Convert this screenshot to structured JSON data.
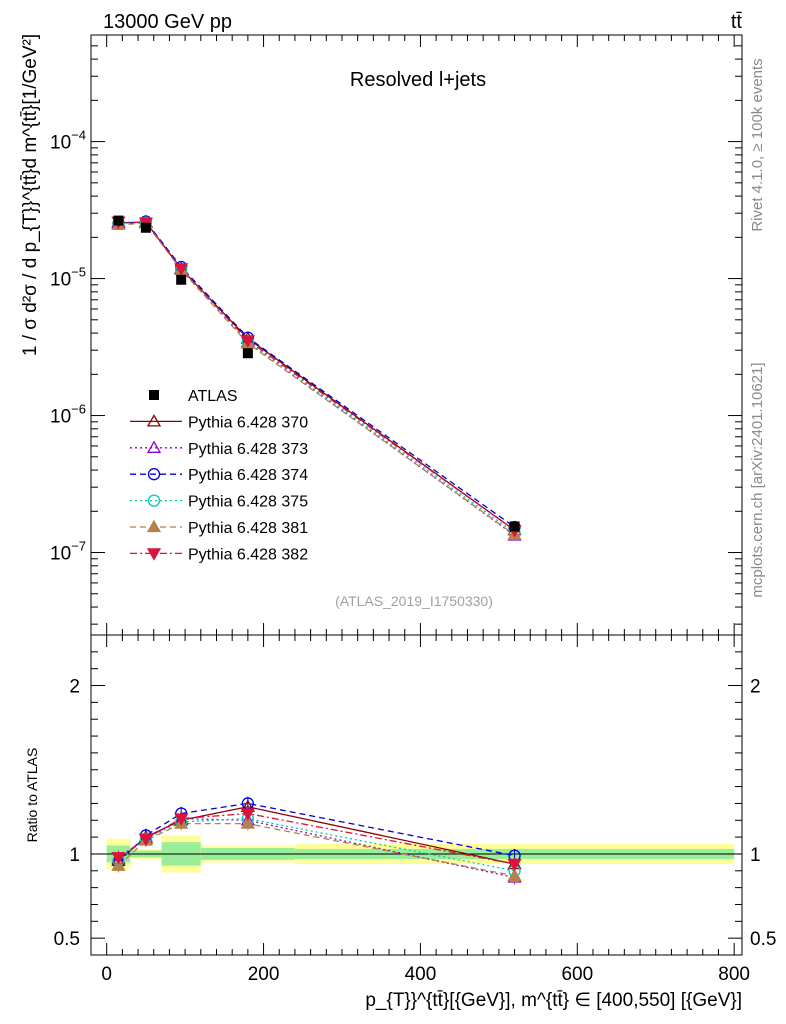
{
  "header": {
    "energy_label": "13000 GeV pp",
    "process_label": "tt̄"
  },
  "side_labels": {
    "rivet": "Rivet 4.1.0, ≥ 100k events",
    "source": "mcplots.cern.ch [arXiv:2401.10621]"
  },
  "chart_data": {
    "type": "line",
    "title": "Resolved l+jets",
    "analysis_id": "(ATLAS_2019_I1750330)",
    "xlabel": "p_{T}}^{tt̄}[{GeV}], m^{tt̄} ∈ [400,550] [{GeV}]",
    "ylabel_main": "1 / σ d²σ / d p_{T}}^{tt̄}d m^{tt̄}[1/GeV²]",
    "ylabel_ratio": "Ratio to ATLAS",
    "xlim": [
      -20,
      810
    ],
    "x_ticks": [
      0,
      200,
      400,
      600,
      800
    ],
    "ylim_main": [
      2.5e-08,
      0.0006
    ],
    "y_ticks_main": [
      {
        "value": 1e-07,
        "base": "10",
        "exp": "−7"
      },
      {
        "value": 1e-06,
        "base": "10",
        "exp": "−6"
      },
      {
        "value": 1e-05,
        "base": "10",
        "exp": "−5"
      },
      {
        "value": 0.0001,
        "base": "10",
        "exp": "−4"
      }
    ],
    "ylim_ratio": [
      0.4,
      2.3
    ],
    "y_ticks_ratio": [
      {
        "value": 0.5,
        "label": "0.5"
      },
      {
        "value": 1,
        "label": "1"
      },
      {
        "value": 2,
        "label": "2"
      }
    ],
    "bin_edges": [
      0,
      30,
      70,
      120,
      240,
      800
    ],
    "x": [
      15,
      50,
      95,
      180,
      520
    ],
    "data": {
      "name": "ATLAS",
      "values": [
        2.65e-05,
        2.35e-05,
        9.8e-06,
        2.85e-06,
        1.55e-07
      ],
      "band_inner": [
        0.05,
        0.02,
        0.07,
        0.035,
        0.03
      ],
      "band_outer": [
        0.09,
        0.03,
        0.11,
        0.05,
        0.06
      ]
    },
    "series": [
      {
        "name": "Pythia 6.428 370",
        "color": "#8b0000",
        "marker": "triangle-up-open",
        "dash": "",
        "ratio": [
          0.96,
          1.1,
          1.2,
          1.28,
          0.94
        ]
      },
      {
        "name": "Pythia 6.428 373",
        "color": "#9400d3",
        "marker": "triangle-up-open",
        "dash": "2,3",
        "ratio": [
          0.97,
          1.09,
          1.21,
          1.2,
          0.86
        ]
      },
      {
        "name": "Pythia 6.428 374",
        "color": "#0000dd",
        "marker": "circle-open",
        "dash": "6,4",
        "ratio": [
          0.95,
          1.11,
          1.24,
          1.3,
          0.99
        ]
      },
      {
        "name": "Pythia 6.428 375",
        "color": "#00ccaa",
        "marker": "circle-open",
        "dash": "2,3",
        "ratio": [
          0.96,
          1.09,
          1.19,
          1.21,
          0.9
        ]
      },
      {
        "name": "Pythia 6.428 381",
        "color": "#b5814d",
        "marker": "triangle-up-filled",
        "dash": "6,4",
        "ratio": [
          0.93,
          1.08,
          1.18,
          1.18,
          0.87
        ]
      },
      {
        "name": "Pythia 6.428 382",
        "color": "#dc143c",
        "marker": "triangle-down-filled",
        "dash": "7,3,2,3",
        "ratio": [
          0.98,
          1.09,
          1.21,
          1.24,
          0.94
        ]
      }
    ],
    "legend_position": "center-left"
  }
}
